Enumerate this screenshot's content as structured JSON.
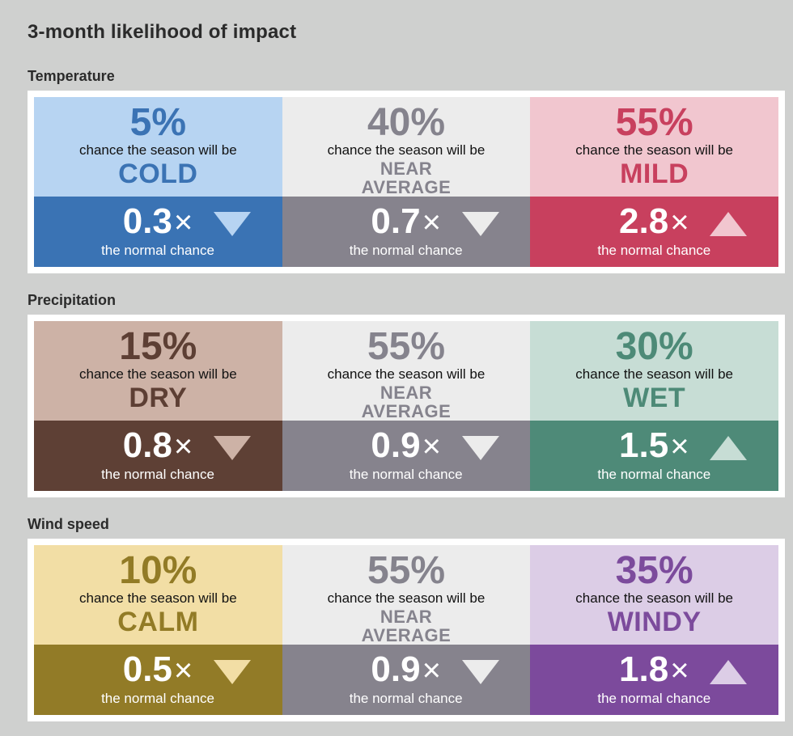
{
  "title": "3-month likelihood of impact",
  "sections": [
    {
      "title": "Temperature",
      "cards": [
        {
          "pct": "5%",
          "phrase": "chance the season will be",
          "category": [
            "COLD"
          ],
          "multiplier": "0.3",
          "times": "×",
          "normal": "the normal chance",
          "direction": "down",
          "colors": {
            "top": "#b7d4f2",
            "text": "#3b73b4",
            "bottom": "#3a73b4",
            "tri": "#b7d4f2"
          }
        },
        {
          "pct": "40%",
          "phrase": "chance the season will be",
          "category": [
            "NEAR",
            "AVERAGE"
          ],
          "multiplier": "0.7",
          "times": "×",
          "normal": "the normal chance",
          "direction": "down",
          "colors": {
            "top": "#ececec",
            "text": "#85838d",
            "bottom": "#86838d",
            "tri": "#ececec"
          }
        },
        {
          "pct": "55%",
          "phrase": "chance the season will be",
          "category": [
            "MILD"
          ],
          "multiplier": "2.8",
          "times": "×",
          "normal": "the normal chance",
          "direction": "up",
          "colors": {
            "top": "#f1c6cf",
            "text": "#c8405e",
            "bottom": "#c8405e",
            "tri": "#f1c6cf"
          }
        }
      ]
    },
    {
      "title": "Precipitation",
      "cards": [
        {
          "pct": "15%",
          "phrase": "chance the season will be",
          "category": [
            "DRY"
          ],
          "multiplier": "0.8",
          "times": "×",
          "normal": "the normal chance",
          "direction": "down",
          "colors": {
            "top": "#cdb2a6",
            "text": "#5d3f34",
            "bottom": "#5e4035",
            "tri": "#cdb2a6"
          }
        },
        {
          "pct": "55%",
          "phrase": "chance the season will be",
          "category": [
            "NEAR",
            "AVERAGE"
          ],
          "multiplier": "0.9",
          "times": "×",
          "normal": "the normal chance",
          "direction": "down",
          "colors": {
            "top": "#ececec",
            "text": "#85838d",
            "bottom": "#86838d",
            "tri": "#ececec"
          }
        },
        {
          "pct": "30%",
          "phrase": "chance the season will be",
          "category": [
            "WET"
          ],
          "multiplier": "1.5",
          "times": "×",
          "normal": "the normal chance",
          "direction": "up",
          "colors": {
            "top": "#c7ddd5",
            "text": "#4d8a77",
            "bottom": "#4e8a78",
            "tri": "#c7ddd5"
          }
        }
      ]
    },
    {
      "title": "Wind speed",
      "cards": [
        {
          "pct": "10%",
          "phrase": "chance the season will be",
          "category": [
            "CALM"
          ],
          "multiplier": "0.5",
          "times": "×",
          "normal": "the normal chance",
          "direction": "down",
          "colors": {
            "top": "#f2dea5",
            "text": "#927b26",
            "bottom": "#927b27",
            "tri": "#f2dea5"
          }
        },
        {
          "pct": "55%",
          "phrase": "chance the season will be",
          "category": [
            "NEAR",
            "AVERAGE"
          ],
          "multiplier": "0.9",
          "times": "×",
          "normal": "the normal chance",
          "direction": "down",
          "colors": {
            "top": "#ececec",
            "text": "#85838d",
            "bottom": "#86838d",
            "tri": "#ececec"
          }
        },
        {
          "pct": "35%",
          "phrase": "chance the season will be",
          "category": [
            "WINDY"
          ],
          "multiplier": "1.8",
          "times": "×",
          "normal": "the normal chance",
          "direction": "up",
          "colors": {
            "top": "#dccde6",
            "text": "#7c4b9c",
            "bottom": "#7c4a9c",
            "tri": "#dccde6"
          }
        }
      ]
    }
  ]
}
